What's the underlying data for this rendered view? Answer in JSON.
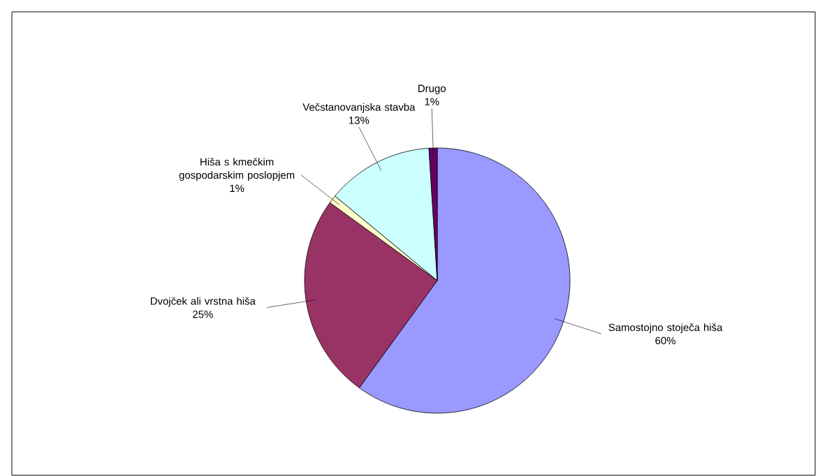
{
  "chart_data": {
    "type": "pie",
    "categories": [
      "Samostojno stoječa hiša",
      "Dvojček ali vrstna hiša",
      "Hiša s kmečkim gospodarskim poslopjem",
      "Večstanovanjska stavba",
      "Drugo"
    ],
    "values": [
      60,
      25,
      1,
      13,
      1
    ],
    "colors": [
      "#9999ff",
      "#993366",
      "#ffffcc",
      "#ccffff",
      "#660066"
    ],
    "value_labels": [
      "60%",
      "25%",
      "1%",
      "13%",
      "1%"
    ]
  }
}
